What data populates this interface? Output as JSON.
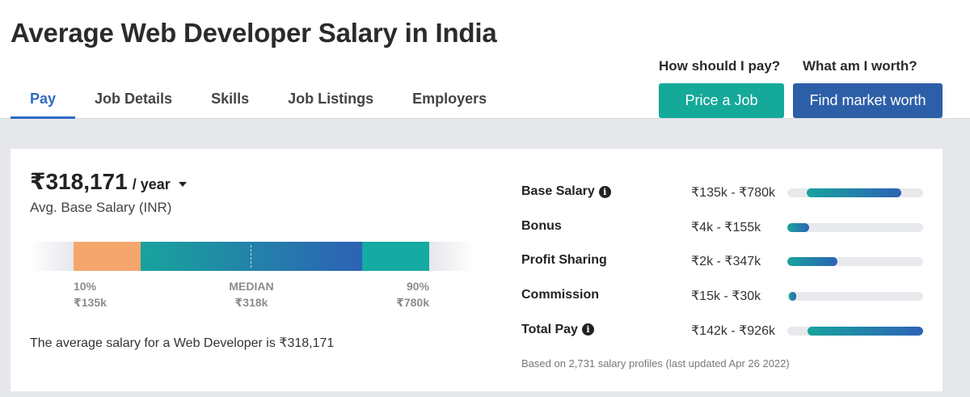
{
  "header": {
    "title": "Average Web Developer Salary in India",
    "tabs": [
      {
        "label": "Pay",
        "active": true
      },
      {
        "label": "Job Details",
        "active": false
      },
      {
        "label": "Skills",
        "active": false
      },
      {
        "label": "Job Listings",
        "active": false
      },
      {
        "label": "Employers",
        "active": false
      }
    ],
    "cta_pay": {
      "question": "How should I pay?",
      "button": "Price a Job"
    },
    "cta_worth": {
      "question": "What am I worth?",
      "button": "Find market worth"
    }
  },
  "salary": {
    "amount": "₹318,171",
    "period": "/ year",
    "label": "Avg. Base Salary (INR)",
    "range": {
      "low_pct": "10%",
      "low_value": "₹135k",
      "median_label": "MEDIAN",
      "median_value": "₹318k",
      "high_pct": "90%",
      "high_value": "₹780k"
    },
    "summary": "The average salary for a Web Developer is ₹318,171"
  },
  "compensation": {
    "rows": [
      {
        "name": "Base Salary",
        "info": true,
        "range": "₹135k - ₹780k",
        "bar_start": 0.14,
        "bar_end": 0.84
      },
      {
        "name": "Bonus",
        "info": false,
        "range": "₹4k - ₹155k",
        "bar_start": 0.0,
        "bar_end": 0.16
      },
      {
        "name": "Profit Sharing",
        "info": false,
        "range": "₹2k - ₹347k",
        "bar_start": 0.0,
        "bar_end": 0.37
      },
      {
        "name": "Commission",
        "info": false,
        "range": "₹15k - ₹30k",
        "bar_start": 0.01,
        "bar_end": 0.06
      },
      {
        "name": "Total Pay",
        "info": true,
        "range": "₹142k - ₹926k",
        "bar_start": 0.15,
        "bar_end": 1.0
      }
    ],
    "footnote": "Based on 2,731 salary profiles (last updated Apr 26 2022)"
  },
  "colors": {
    "accent_blue": "#2f6bc1",
    "teal_button": "#15a99a",
    "blue_button": "#2d5fa8",
    "low_segment": "#f5a66d"
  },
  "icons": {
    "period_dropdown": "caret-down-icon",
    "info": "info-icon"
  }
}
